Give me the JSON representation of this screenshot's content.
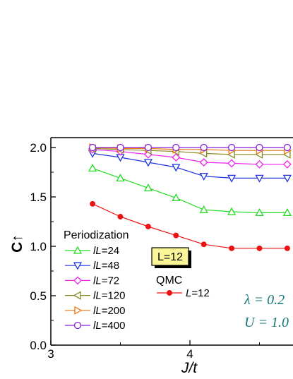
{
  "chart_data": {
    "type": "line",
    "xlabel": "J/t",
    "ylabel": "C↑",
    "xlim": [
      3,
      4.95
    ],
    "ylim": [
      0,
      2.1
    ],
    "x_ticks": [
      "3",
      "4"
    ],
    "y_ticks": [
      "0.0",
      "0.5",
      "1.0",
      "1.5",
      "2.0"
    ],
    "grid": false,
    "x": [
      3.3,
      3.5,
      3.7,
      3.9,
      4.1,
      4.3,
      4.5,
      4.7
    ],
    "series": [
      {
        "name": "lL=24",
        "color": "#22dd22",
        "marker": "triangle-up",
        "values": [
          1.79,
          1.69,
          1.59,
          1.49,
          1.37,
          1.35,
          1.34,
          1.34
        ]
      },
      {
        "name": "lL=48",
        "color": "#1f35e0",
        "marker": "triangle-down",
        "values": [
          1.94,
          1.9,
          1.85,
          1.8,
          1.71,
          1.69,
          1.69,
          1.69
        ]
      },
      {
        "name": "lL=72",
        "color": "#ee22ee",
        "marker": "diamond",
        "values": [
          1.98,
          1.96,
          1.93,
          1.9,
          1.85,
          1.84,
          1.83,
          1.83
        ]
      },
      {
        "name": "lL=120",
        "color": "#888822",
        "marker": "triangle-left",
        "values": [
          1.99,
          1.98,
          1.97,
          1.96,
          1.94,
          1.93,
          1.93,
          1.93
        ]
      },
      {
        "name": "lL=200",
        "color": "#ee7711",
        "marker": "triangle-right",
        "values": [
          2.0,
          1.99,
          1.99,
          1.98,
          1.98,
          1.97,
          1.97,
          1.97
        ]
      },
      {
        "name": "lL=400",
        "color": "#8822dd",
        "marker": "circle-open",
        "values": [
          2.0,
          2.0,
          2.0,
          2.0,
          2.0,
          2.0,
          2.0,
          2.0
        ]
      },
      {
        "name": "L=12",
        "color": "#ee1111",
        "marker": "circle-filled",
        "values": [
          1.43,
          1.3,
          1.2,
          1.11,
          1.02,
          0.98,
          0.98,
          0.98
        ]
      }
    ],
    "legend": {
      "group1_title": "Periodization",
      "group2_title": "QMC",
      "size_box": "L=12",
      "placement": "lower-left"
    },
    "annotations": {
      "line1": "λ = 0.2",
      "line2": "U = 1.0",
      "color": "#117777"
    }
  }
}
